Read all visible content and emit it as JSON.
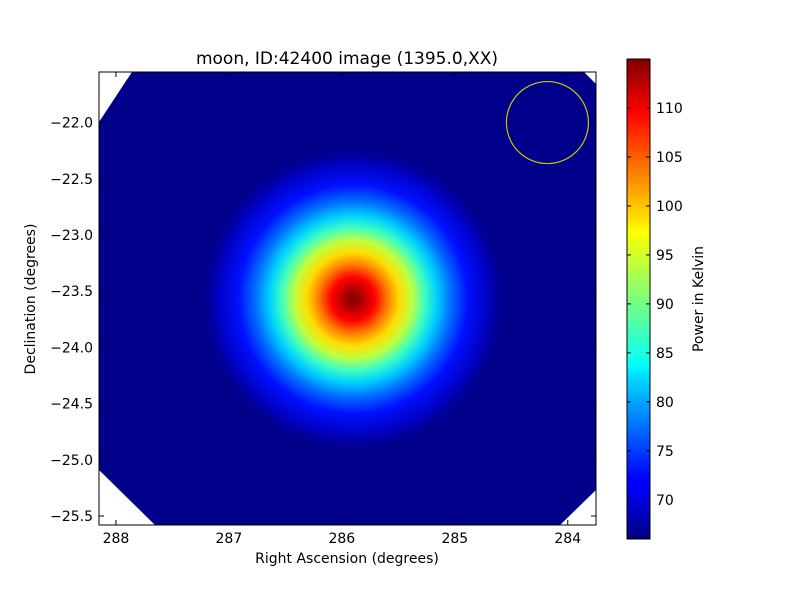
{
  "chart_data": {
    "type": "heatmap",
    "title": "moon, ID:42400 image (1395.0,XX)",
    "xlabel": "Right Ascension (degrees)",
    "ylabel": "Declination (degrees)",
    "xlim": [
      288.15,
      283.75
    ],
    "ylim": [
      -25.58,
      -21.55
    ],
    "x_ticks": [
      288,
      287,
      286,
      285,
      284
    ],
    "x_tick_labels": [
      "288",
      "287",
      "286",
      "285",
      "284"
    ],
    "y_ticks": [
      -22.0,
      -22.5,
      -23.0,
      -23.5,
      -24.0,
      -24.5,
      -25.0,
      -25.5
    ],
    "y_tick_labels": [
      "−22.0",
      "−22.5",
      "−23.0",
      "−23.5",
      "−24.0",
      "−24.5",
      "−25.0",
      "−25.5"
    ],
    "colorbar": {
      "label": "Power in Kelvin",
      "range": [
        66,
        115
      ],
      "ticks": [
        70,
        75,
        80,
        85,
        90,
        95,
        100,
        105,
        110
      ],
      "tick_labels": [
        "70",
        "75",
        "80",
        "85",
        "90",
        "95",
        "100",
        "105",
        "110"
      ],
      "colormap": "jet"
    },
    "source": {
      "ra": 285.9,
      "dec": -23.57,
      "peak": 114,
      "background": 67
    },
    "beam_circle": {
      "ra": 284.18,
      "dec": -22.0,
      "color": "#c8c800"
    },
    "grid": false
  }
}
